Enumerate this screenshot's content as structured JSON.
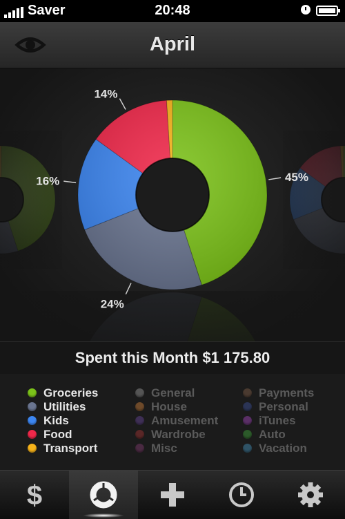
{
  "status_bar": {
    "carrier": "Saver",
    "time": "20:48"
  },
  "header": {
    "title": "April",
    "eye_icon": "eye-icon"
  },
  "chart_data": {
    "type": "pie",
    "style": "donut",
    "slices": [
      {
        "name": "Groceries",
        "value": 45,
        "color": "#7cc21a"
      },
      {
        "name": "Utilities",
        "value": 24,
        "color": "#6a7590"
      },
      {
        "name": "Kids",
        "value": 16,
        "color": "#3d86f0"
      },
      {
        "name": "Food",
        "value": 14,
        "color": "#f0284a"
      },
      {
        "name": "Transport",
        "value": 1,
        "color": "#f7b31a"
      }
    ],
    "labels": [
      "45%",
      "24%",
      "16%",
      "14%"
    ]
  },
  "summary": {
    "text": "Spent this Month $1 175.80"
  },
  "legend": {
    "active_color": "#e6e6e6",
    "inactive_color": "#5a5a5a",
    "columns": [
      [
        {
          "label": "Groceries",
          "color": "#7cc21a",
          "active": true
        },
        {
          "label": "Utilities",
          "color": "#6a7590",
          "active": true
        },
        {
          "label": "Kids",
          "color": "#3d86f0",
          "active": true
        },
        {
          "label": "Food",
          "color": "#f0284a",
          "active": true
        },
        {
          "label": "Transport",
          "color": "#f7b31a",
          "active": true
        }
      ],
      [
        {
          "label": "General",
          "color": "#555555",
          "active": false
        },
        {
          "label": "House",
          "color": "#6e4a2a",
          "active": false
        },
        {
          "label": "Amusement",
          "color": "#3e2f55",
          "active": false
        },
        {
          "label": "Wardrobe",
          "color": "#5a2727",
          "active": false
        },
        {
          "label": "Misc",
          "color": "#4a2a42",
          "active": false
        }
      ],
      [
        {
          "label": "Payments",
          "color": "#4a3a30",
          "active": false
        },
        {
          "label": "Personal",
          "color": "#2b3455",
          "active": false
        },
        {
          "label": "iTunes",
          "color": "#5a2f66",
          "active": false
        },
        {
          "label": "Auto",
          "color": "#2c5a2a",
          "active": false
        },
        {
          "label": "Vacation",
          "color": "#2f5366",
          "active": false
        }
      ]
    ]
  },
  "tabs": [
    {
      "name": "dollar-icon",
      "active": false
    },
    {
      "name": "donut-chart-icon",
      "active": true
    },
    {
      "name": "plus-icon",
      "active": false
    },
    {
      "name": "clock-icon",
      "active": false
    },
    {
      "name": "gear-icon",
      "active": false
    }
  ]
}
